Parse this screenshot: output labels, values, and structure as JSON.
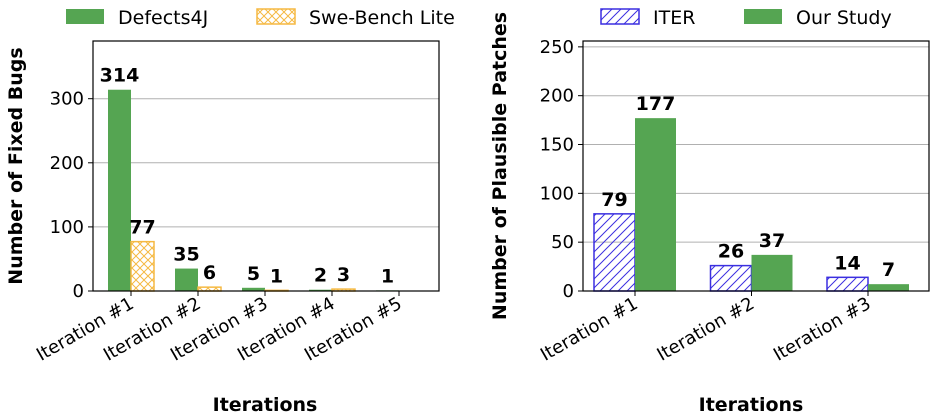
{
  "chart_data": [
    {
      "type": "bar",
      "categories": [
        "Iteration #1",
        "Iteration #2",
        "Iteration #3",
        "Iteration #4",
        "Iteration #5"
      ],
      "series": [
        {
          "name": "Defects4J",
          "values": [
            314,
            35,
            5,
            2,
            1
          ],
          "color": "#55a552",
          "style": "solid"
        },
        {
          "name": "Swe-Bench Lite",
          "values": [
            77,
            6,
            1,
            3,
            0
          ],
          "color": "#f5b942",
          "style": "crosshatch"
        }
      ],
      "data_labels": [
        [
          "314",
          "35",
          "5",
          "2",
          "1"
        ],
        [
          "77",
          "6",
          "1",
          "3",
          ""
        ]
      ],
      "xlabel": "Iterations",
      "ylabel": "Number of Fixed Bugs",
      "ylim": [
        0,
        390
      ],
      "yticks": [
        0,
        100,
        200,
        300
      ],
      "grid": "horizontal",
      "legend": "top"
    },
    {
      "type": "bar",
      "categories": [
        "Iteration #1",
        "Iteration #2",
        "Iteration #3"
      ],
      "series": [
        {
          "name": "ITER",
          "values": [
            79,
            26,
            14
          ],
          "color": "#3b2fe0",
          "style": "diagonal-hatch"
        },
        {
          "name": "Our Study",
          "values": [
            177,
            37,
            7
          ],
          "color": "#55a552",
          "style": "solid"
        }
      ],
      "data_labels": [
        [
          "79",
          "26",
          "14"
        ],
        [
          "177",
          "37",
          "7"
        ]
      ],
      "xlabel": "Iterations",
      "ylabel": "Number of Plausible Patches",
      "ylim": [
        0,
        256
      ],
      "yticks": [
        0,
        50,
        100,
        150,
        200,
        250
      ],
      "grid": "horizontal",
      "legend": "top"
    }
  ]
}
